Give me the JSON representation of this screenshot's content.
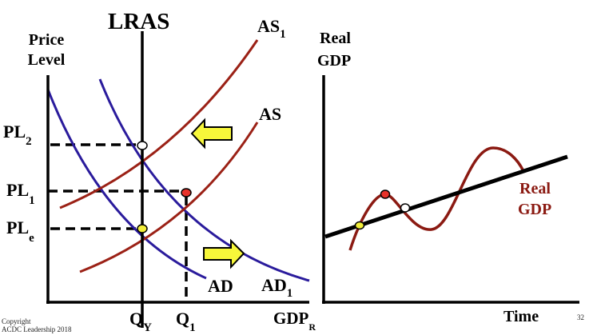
{
  "left_graph": {
    "lras_label": "LRAS",
    "y_axis_label": [
      "Price",
      "Level"
    ],
    "x_axis_label": {
      "main": "GDP",
      "sub": "R"
    },
    "curves": {
      "as1": {
        "main": "AS",
        "sub": "1"
      },
      "as": {
        "main": "AS"
      },
      "ad": {
        "main": "AD"
      },
      "ad1": {
        "main": "AD",
        "sub": "1"
      }
    },
    "price_levels": {
      "pl2": {
        "main": "PL",
        "sub": "2"
      },
      "pl1": {
        "main": "PL",
        "sub": "1"
      },
      "ple": {
        "main": "PL",
        "sub": "e"
      }
    },
    "quantities": {
      "qy": {
        "main": "Q",
        "sub": "Y"
      },
      "q1": {
        "main": "Q",
        "sub": "1"
      }
    },
    "arrows": [
      "left-shift-arrow",
      "right-shift-arrow"
    ],
    "points": {
      "pl2": "#ffffff",
      "pl1": "#e8322a",
      "ple": "#f2ee3a"
    }
  },
  "right_graph": {
    "y_axis_label": [
      "Real",
      "GDP"
    ],
    "x_axis_label": "Time",
    "curve_label": [
      "Real",
      "GDP"
    ]
  },
  "colors": {
    "supply": "#9b2116",
    "demand": "#2a1b9c",
    "arrow_fill": "#f7f73a",
    "curve_label": "#8b1a12"
  },
  "footer": {
    "copyright": [
      "Copyright",
      "ACDC Leadership 2018"
    ],
    "page_number": "32"
  }
}
